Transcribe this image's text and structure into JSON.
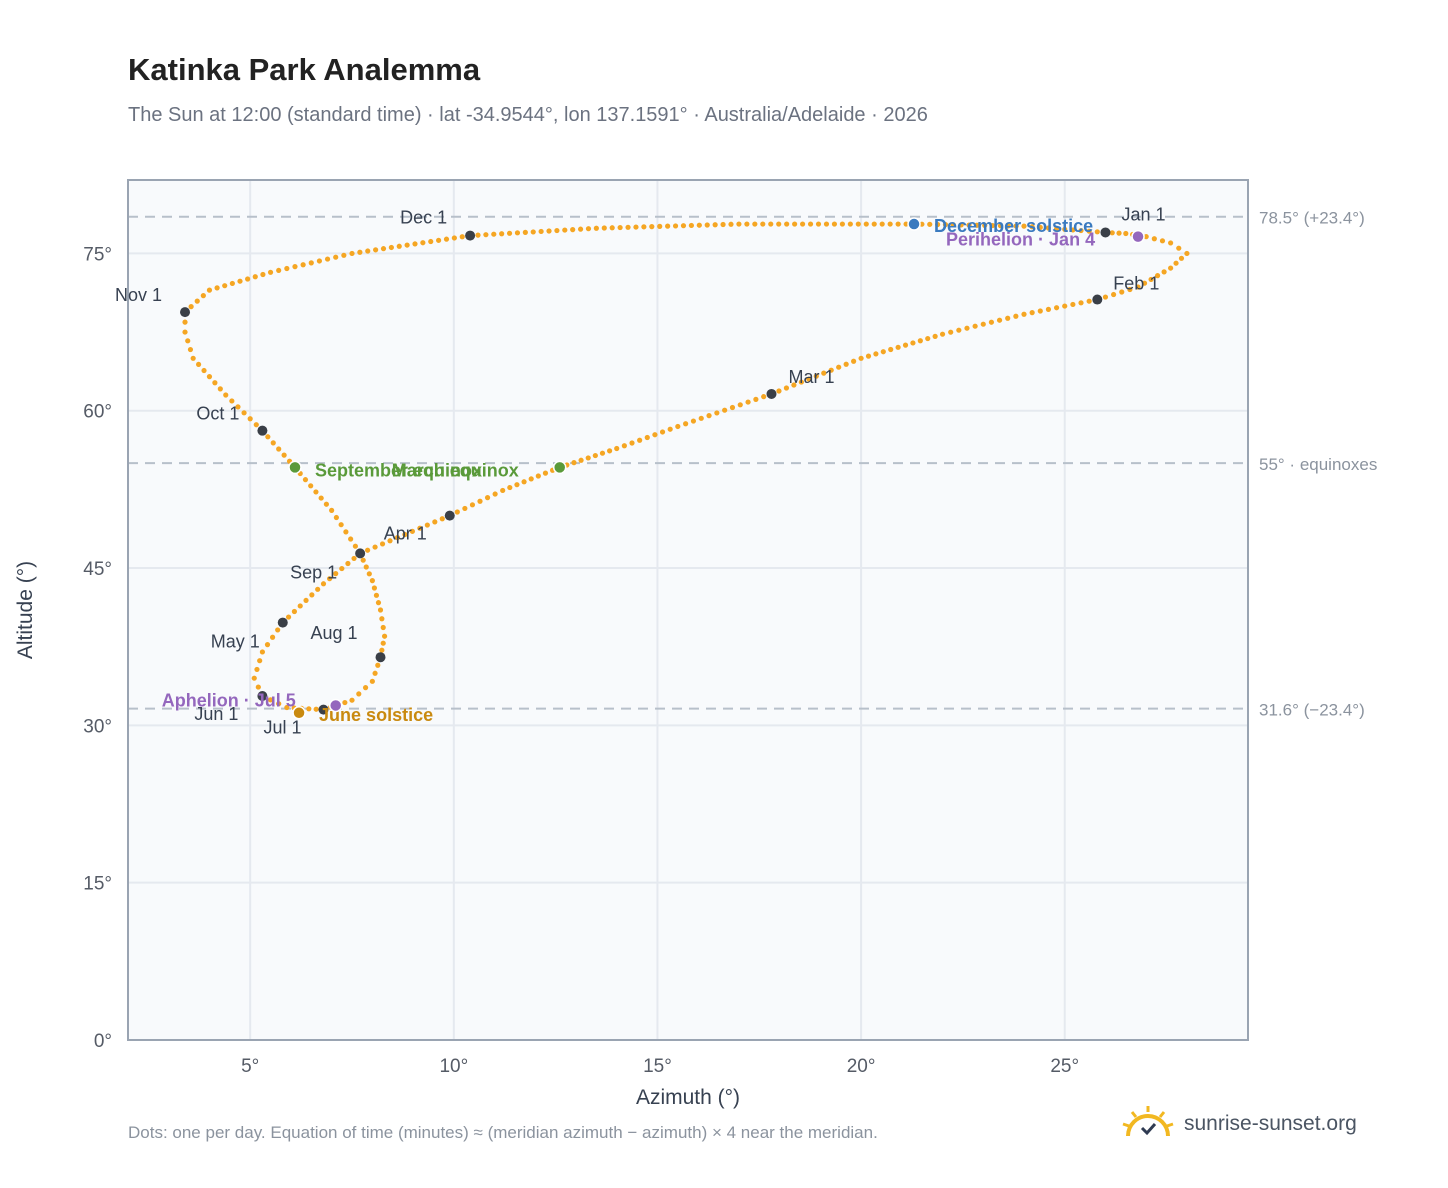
{
  "title": "Katinka Park Analemma",
  "subtitle": "The Sun at 12:00 (standard time) · lat -34.9544°, lon 137.1591° · Australia/Adelaide · 2026",
  "footnote": "Dots: one per day. Equation of time (minutes) ≈ (meridian azimuth − azimuth) × 4 near the meridian.",
  "brand": {
    "name": "sunrise-sunset.org",
    "icon": "sun-logo-icon"
  },
  "colors": {
    "curve": "#f5a623",
    "month_marker": "#3a3f47",
    "equinox": "#5a9a3a",
    "december_solstice": "#3a7abf",
    "june_solstice": "#c98a10",
    "apsis": "#9467bd",
    "plot_bg": "#f8fafc",
    "grid": "#e5e9ef",
    "axis": "#9aa4b2"
  },
  "chart_data": {
    "type": "scatter",
    "xlabel": "Azimuth (°)",
    "ylabel": "Altitude (°)",
    "xlim": [
      2,
      29.5
    ],
    "ylim": [
      0,
      82
    ],
    "x_ticks": [
      5,
      10,
      15,
      20,
      25
    ],
    "x_tick_labels": [
      "5°",
      "10°",
      "15°",
      "20°",
      "25°"
    ],
    "y_ticks": [
      0,
      15,
      30,
      45,
      60,
      75
    ],
    "y_tick_labels": [
      "0°",
      "15°",
      "30°",
      "45°",
      "60°",
      "75°"
    ],
    "grid": true,
    "reference_lines": [
      {
        "y": 78.5,
        "label": "78.5° (+23.4°)"
      },
      {
        "y": 55.0,
        "label": "55° · equinoxes"
      },
      {
        "y": 31.6,
        "label": "31.6° (−23.4°)"
      }
    ],
    "month_markers": [
      {
        "label": "Jan 1",
        "x": 26.0,
        "y": 77.0
      },
      {
        "label": "Feb 1",
        "x": 25.8,
        "y": 70.6
      },
      {
        "label": "Mar 1",
        "x": 17.8,
        "y": 61.6
      },
      {
        "label": "Apr 1",
        "x": 9.9,
        "y": 50.0
      },
      {
        "label": "May 1",
        "x": 5.8,
        "y": 39.8
      },
      {
        "label": "Jun 1",
        "x": 5.3,
        "y": 32.8
      },
      {
        "label": "Jul 1",
        "x": 6.8,
        "y": 31.5
      },
      {
        "label": "Aug 1",
        "x": 8.2,
        "y": 36.5
      },
      {
        "label": "Sep 1",
        "x": 7.7,
        "y": 46.4
      },
      {
        "label": "Oct 1",
        "x": 5.3,
        "y": 58.1
      },
      {
        "label": "Nov 1",
        "x": 3.4,
        "y": 69.4
      },
      {
        "label": "Dec 1",
        "x": 10.4,
        "y": 76.7
      }
    ],
    "events": [
      {
        "label": "March equinox",
        "x": 12.6,
        "y": 54.6,
        "kind": "equinox"
      },
      {
        "label": "September equinox",
        "x": 6.1,
        "y": 54.6,
        "kind": "equinox"
      },
      {
        "label": "December solstice",
        "x": 21.3,
        "y": 77.8,
        "kind": "december_solstice"
      },
      {
        "label": "June solstice",
        "x": 6.2,
        "y": 31.2,
        "kind": "june_solstice"
      },
      {
        "label": "Perihelion · Jan 4",
        "x": 26.8,
        "y": 76.6,
        "kind": "apsis"
      },
      {
        "label": "Aphelion · Jul 5",
        "x": 7.1,
        "y": 31.9,
        "kind": "apsis"
      }
    ],
    "curve_points": [
      [
        26.0,
        77.0
      ],
      [
        26.5,
        76.9
      ],
      [
        27.0,
        76.6
      ],
      [
        27.6,
        76.0
      ],
      [
        28.0,
        75.0
      ],
      [
        27.6,
        73.6
      ],
      [
        26.8,
        71.8
      ],
      [
        25.8,
        70.6
      ],
      [
        24.0,
        69.2
      ],
      [
        22.0,
        67.3
      ],
      [
        20.0,
        65.0
      ],
      [
        17.8,
        61.6
      ],
      [
        15.5,
        58.5
      ],
      [
        14.0,
        56.4
      ],
      [
        12.6,
        54.6
      ],
      [
        11.2,
        52.4
      ],
      [
        9.9,
        50.0
      ],
      [
        8.8,
        48.2
      ],
      [
        7.7,
        46.4
      ],
      [
        6.8,
        43.5
      ],
      [
        5.8,
        39.8
      ],
      [
        5.3,
        37.0
      ],
      [
        5.1,
        34.5
      ],
      [
        5.3,
        32.8
      ],
      [
        5.9,
        31.7
      ],
      [
        6.8,
        31.5
      ],
      [
        7.5,
        32.4
      ],
      [
        8.0,
        34.2
      ],
      [
        8.2,
        36.5
      ],
      [
        8.3,
        38.5
      ],
      [
        8.2,
        41.0
      ],
      [
        8.0,
        43.8
      ],
      [
        7.7,
        46.4
      ],
      [
        7.0,
        50.5
      ],
      [
        6.1,
        54.6
      ],
      [
        5.3,
        58.1
      ],
      [
        4.4,
        61.5
      ],
      [
        3.6,
        65.0
      ],
      [
        3.4,
        67.5
      ],
      [
        3.4,
        69.4
      ],
      [
        4.0,
        71.5
      ],
      [
        5.5,
        73.2
      ],
      [
        7.5,
        75.0
      ],
      [
        10.4,
        76.7
      ],
      [
        13.5,
        77.4
      ],
      [
        17.0,
        77.8
      ],
      [
        21.3,
        77.8
      ],
      [
        24.0,
        77.6
      ],
      [
        26.0,
        77.0
      ]
    ]
  }
}
